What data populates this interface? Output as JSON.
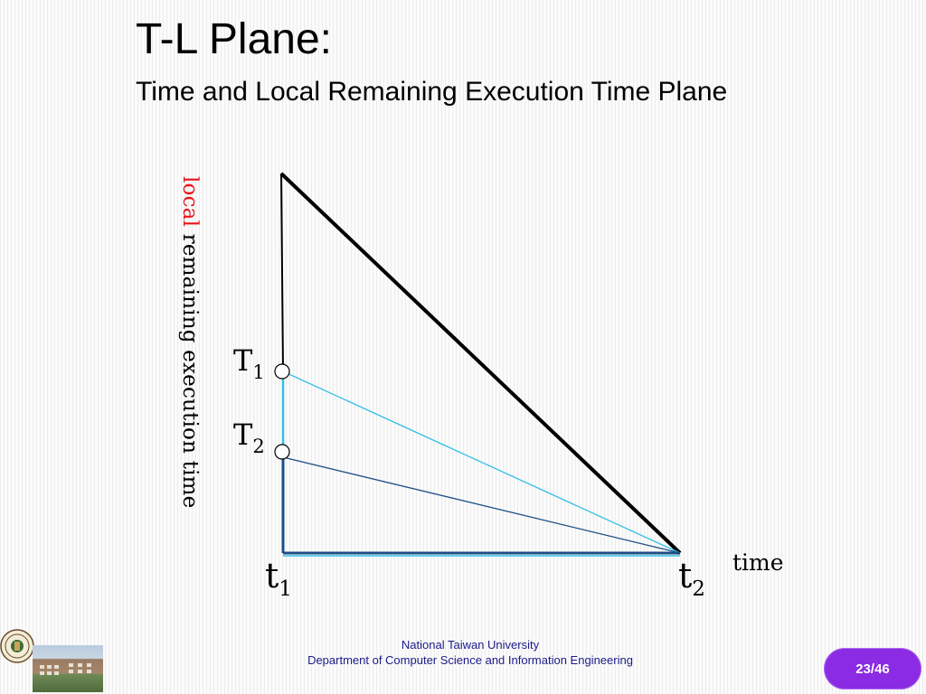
{
  "slide": {
    "title": "T-L Plane:",
    "subtitle": "Time and Local Remaining Execution Time Plane"
  },
  "diagram": {
    "y_axis_label_accent": "local",
    "y_axis_label_rest": " remaining execution time",
    "x_axis_label": "time",
    "tasks": [
      {
        "name": "T",
        "subscript": "1",
        "line_color": "#35bfe6"
      },
      {
        "name": "T",
        "subscript": "2",
        "line_color": "#1c4f86"
      }
    ],
    "time_marks": [
      {
        "name": "t",
        "subscript": "1"
      },
      {
        "name": "t",
        "subscript": "2"
      }
    ],
    "colors": {
      "triangle_edge": "#000000",
      "base_line": "#1c4f86",
      "accent": "#e8141c"
    }
  },
  "footer": {
    "university": "National Taiwan University",
    "department": "Department of Computer Science and Information Engineering",
    "page_current": "23",
    "page_total": "/46",
    "logo_icon": "university-seal-icon",
    "photo": "campus-building-photo"
  }
}
